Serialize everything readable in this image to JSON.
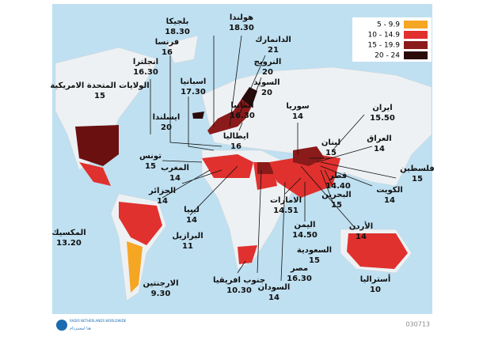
{
  "legend": [
    {
      "label": "5 - 9.9",
      "color": "#f5a623"
    },
    {
      "label": "10 - 14.9",
      "color": "#e0312e"
    },
    {
      "label": "15 - 19.9",
      "color": "#8b1a1a"
    },
    {
      "label": "20 - 24",
      "color": "#2a0a0a"
    }
  ],
  "labels": [
    {
      "name": "بلجيكا",
      "value": "18.30"
    },
    {
      "name": "هولندا",
      "value": "18.30"
    },
    {
      "name": "فرنسا",
      "value": "16"
    },
    {
      "name": "الدانمارك",
      "value": "21"
    },
    {
      "name": "انجلترا",
      "value": "16.30"
    },
    {
      "name": "النرويج",
      "value": "20"
    },
    {
      "name": "اسبانيا",
      "value": "17.30"
    },
    {
      "name": "السويد",
      "value": "20"
    },
    {
      "name": "الولايات المتحدة الامريكية",
      "value": "15"
    },
    {
      "name": "ألمانيا",
      "value": "16.30"
    },
    {
      "name": "سوريا",
      "value": "14"
    },
    {
      "name": "ايران",
      "value": "15.50"
    },
    {
      "name": "ايسلندا",
      "value": "20"
    },
    {
      "name": "ايطاليا",
      "value": "16"
    },
    {
      "name": "لبنان",
      "value": "15"
    },
    {
      "name": "العراق",
      "value": "14"
    },
    {
      "name": "تونس",
      "value": "15"
    },
    {
      "name": "المغرب",
      "value": "14"
    },
    {
      "name": "فلسطين",
      "value": "15"
    },
    {
      "name": "قطر",
      "value": "14.40"
    },
    {
      "name": "الكويت",
      "value": "14"
    },
    {
      "name": "الجزائر",
      "value": "14"
    },
    {
      "name": "البحرين",
      "value": "15"
    },
    {
      "name": "ليبيا",
      "value": "14"
    },
    {
      "name": "الامارات",
      "value": "14.51"
    },
    {
      "name": "الأردن",
      "value": "14"
    },
    {
      "name": "اليمن",
      "value": "14.50"
    },
    {
      "name": "المكسيك",
      "value": "13.20"
    },
    {
      "name": "البرازيل",
      "value": "11"
    },
    {
      "name": "السعودية",
      "value": "15"
    },
    {
      "name": "مصر",
      "value": "16.30"
    },
    {
      "name": "جنوب افريقيا",
      "value": "10.30"
    },
    {
      "name": "الارجنتين",
      "value": "9.30"
    },
    {
      "name": "السودان",
      "value": "14"
    },
    {
      "name": "أستراليا",
      "value": "10"
    }
  ],
  "footer": {
    "code": "030713",
    "logo_en": "RADIO NETHERLANDS WORLDWIDE",
    "logo_ar": "هنا امستردام"
  }
}
